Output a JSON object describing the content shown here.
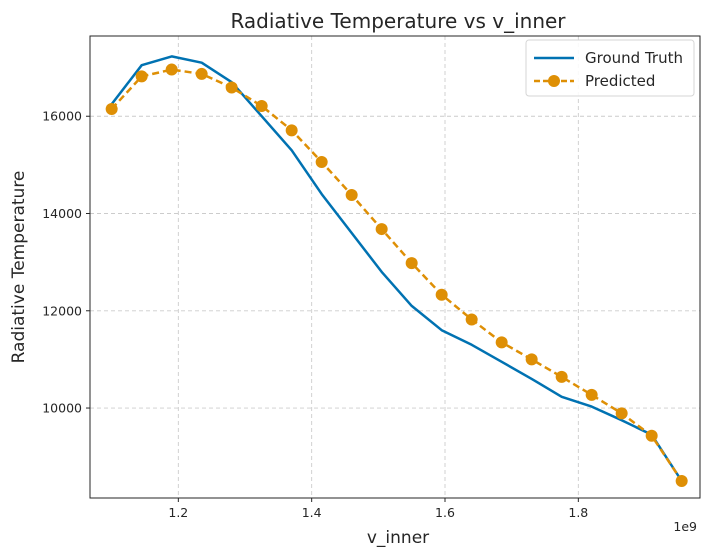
{
  "chart_data": {
    "type": "line",
    "title": "Radiative Temperature vs v_inner",
    "xlabel": "v_inner",
    "ylabel": "Radiative Temperature",
    "x_offset_label": "1e9",
    "xlim": [
      1.0675,
      1.9825
    ],
    "ylim": [
      8150,
      17650
    ],
    "x_ticks": [
      1.2,
      1.4,
      1.6,
      1.8
    ],
    "x_tick_labels": [
      "1.2",
      "1.4",
      "1.6",
      "1.8"
    ],
    "y_ticks": [
      10000,
      12000,
      14000,
      16000
    ],
    "y_tick_labels": [
      "10000",
      "12000",
      "14000",
      "16000"
    ],
    "grid": true,
    "legend_position": "top-right",
    "series": [
      {
        "name": "Ground Truth",
        "color": "#0072B2",
        "style": "solid",
        "marker": "none",
        "x": [
          1.1,
          1.145,
          1.19,
          1.235,
          1.28,
          1.325,
          1.37,
          1.415,
          1.46,
          1.505,
          1.55,
          1.595,
          1.64,
          1.685,
          1.73,
          1.775,
          1.82,
          1.865,
          1.91,
          1.955
        ],
        "values": [
          16250,
          17050,
          17230,
          17100,
          16700,
          16000,
          15300,
          14400,
          13600,
          12800,
          12100,
          11600,
          11300,
          10950,
          10600,
          10230,
          10030,
          9750,
          9450,
          8500
        ]
      },
      {
        "name": "Predicted",
        "color": "#DE8F05",
        "style": "dashed",
        "marker": "circle",
        "x": [
          1.1,
          1.145,
          1.19,
          1.235,
          1.28,
          1.325,
          1.37,
          1.415,
          1.46,
          1.505,
          1.55,
          1.595,
          1.64,
          1.685,
          1.73,
          1.775,
          1.82,
          1.865,
          1.91,
          1.955
        ],
        "values": [
          16150,
          16820,
          16960,
          16870,
          16590,
          16210,
          15710,
          15060,
          14380,
          13680,
          12980,
          12330,
          11820,
          11350,
          11000,
          10640,
          10270,
          9890,
          9430,
          8500
        ]
      }
    ]
  }
}
